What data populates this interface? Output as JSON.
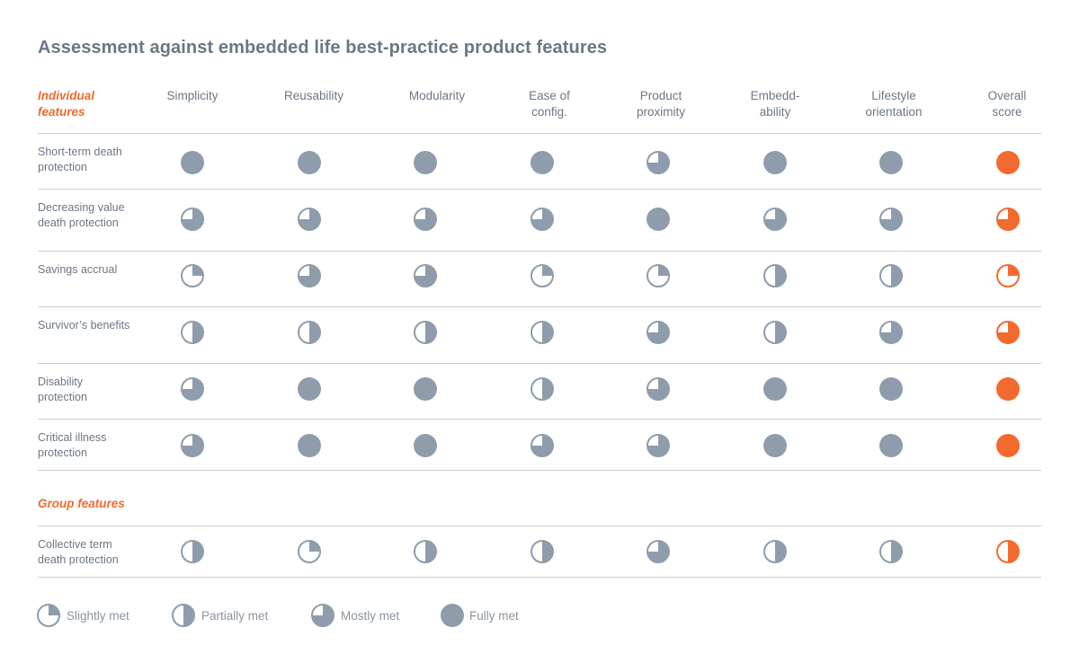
{
  "colors": {
    "neutral": "#8e9cab",
    "accent": "#f26a2e",
    "text": "#6b7785",
    "rule": "#c9ced4"
  },
  "chart_data": {
    "type": "table",
    "title": "Assessment against embedded life best-practice product features",
    "encoding": "Harvey balls: fill fraction 0.25 = Slightly met, 0.5 = Partially met, 0.75 = Mostly met, 1 = Fully met",
    "columns": [
      "Simplicity",
      "Reusability",
      "Modularity",
      "Ease of\nconfig.",
      "Product\nproximity",
      "Embedd-\nability",
      "Lifestyle\norientation",
      "Overall\nscore"
    ],
    "sections": [
      {
        "label": "Individual\nfeatures",
        "rows": [
          {
            "label": "Short-term death\nprotection",
            "values": [
              1,
              1,
              1,
              1,
              0.75,
              1,
              1,
              1
            ]
          },
          {
            "label": "Decreasing value\ndeath protection",
            "values": [
              0.75,
              0.75,
              0.75,
              0.75,
              1,
              0.75,
              0.75,
              0.75
            ]
          },
          {
            "label": "Savings accrual",
            "values": [
              0.25,
              0.75,
              0.75,
              0.25,
              0.25,
              0.5,
              0.5,
              0.25
            ]
          },
          {
            "label": "Survivor’s benefits",
            "values": [
              0.5,
              0.5,
              0.5,
              0.5,
              0.75,
              0.5,
              0.75,
              0.75
            ]
          },
          {
            "label": "Disability\nprotection",
            "values": [
              0.75,
              1,
              1,
              0.5,
              0.75,
              1,
              1,
              1
            ]
          },
          {
            "label": "Critical illness\nprotection",
            "values": [
              0.75,
              1,
              1,
              0.75,
              0.75,
              1,
              1,
              1
            ]
          }
        ]
      },
      {
        "label": "Group features",
        "rows": [
          {
            "label": "Collective term\ndeath protection",
            "values": [
              0.5,
              0.25,
              0.5,
              0.5,
              0.75,
              0.5,
              0.5,
              0.5
            ]
          }
        ]
      }
    ],
    "legend": [
      {
        "label": "Slightly met",
        "value": 0.25
      },
      {
        "label": "Partially met",
        "value": 0.5
      },
      {
        "label": "Mostly met",
        "value": 0.75
      },
      {
        "label": "Fully met",
        "value": 1
      }
    ],
    "legend_position": "bottom-left"
  }
}
